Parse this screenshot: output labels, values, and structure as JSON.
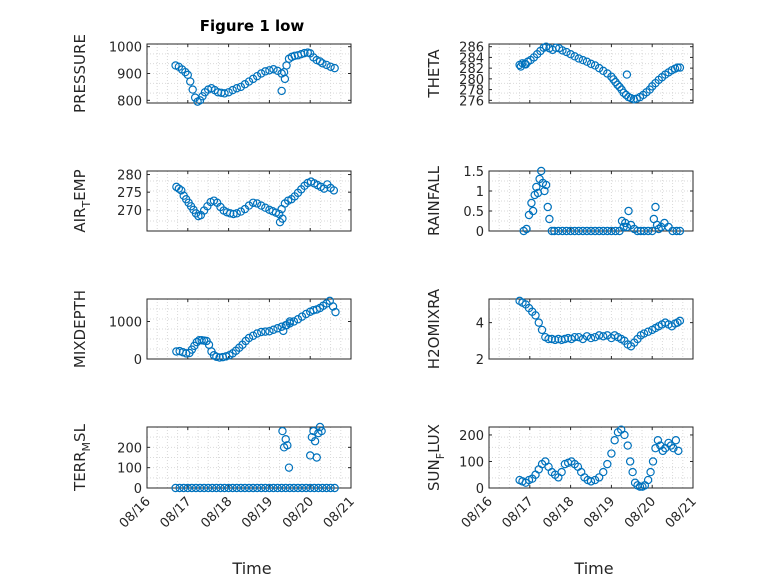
{
  "figure": {
    "title": "Figure 1 low",
    "xlabel": "Time"
  },
  "style": {
    "marker_color": "#0072BD",
    "grid_color": "#d9d9d9",
    "axis_color": "#262626",
    "marker": "circle-open",
    "grid": "dotted"
  },
  "chart_data": [
    {
      "type": "scatter",
      "ylabel": "PRESSURE",
      "title": "Figure 1 low",
      "xlim": [
        0,
        5
      ],
      "ylim": [
        790,
        1010
      ],
      "xticks": [
        "08/16",
        "08/17",
        "08/18",
        "08/19",
        "08/20",
        "08/21"
      ],
      "show_xticklabels": false,
      "yticks": [
        800,
        900,
        1000
      ],
      "x": [
        0.7,
        0.78,
        0.86,
        0.94,
        1.0,
        1.06,
        1.12,
        1.18,
        1.24,
        1.3,
        1.36,
        1.42,
        1.5,
        1.58,
        1.66,
        1.74,
        1.82,
        1.9,
        2.0,
        2.1,
        2.2,
        2.3,
        2.4,
        2.5,
        2.6,
        2.7,
        2.8,
        2.9,
        3.0,
        3.1,
        3.2,
        3.3,
        3.36,
        3.42,
        3.48,
        3.55,
        3.62,
        3.7,
        3.78,
        3.86,
        3.94,
        4.0,
        4.08,
        4.16,
        4.24,
        4.3,
        4.4,
        4.5,
        4.6,
        3.3,
        3.38
      ],
      "y": [
        930,
        925,
        915,
        905,
        895,
        870,
        840,
        810,
        795,
        800,
        815,
        830,
        840,
        845,
        838,
        830,
        828,
        826,
        830,
        838,
        845,
        850,
        860,
        870,
        880,
        890,
        900,
        908,
        912,
        916,
        910,
        900,
        905,
        930,
        955,
        962,
        966,
        968,
        972,
        976,
        978,
        975,
        960,
        950,
        945,
        938,
        932,
        925,
        920,
        835,
        880
      ]
    },
    {
      "type": "scatter",
      "ylabel": "THETA",
      "xlim": [
        0,
        5
      ],
      "ylim": [
        275.5,
        286.5
      ],
      "xticks": [
        "08/16",
        "08/17",
        "08/18",
        "08/19",
        "08/20",
        "08/21"
      ],
      "show_xticklabels": false,
      "yticks": [
        276,
        278,
        280,
        282,
        284,
        286
      ],
      "x": [
        0.75,
        0.82,
        0.88,
        0.95,
        1.02,
        1.1,
        1.18,
        1.26,
        1.34,
        1.4,
        1.48,
        1.56,
        1.64,
        1.72,
        1.8,
        1.9,
        2.0,
        2.1,
        2.2,
        2.3,
        2.4,
        2.5,
        2.6,
        2.7,
        2.8,
        2.9,
        3.0,
        3.05,
        3.1,
        3.15,
        3.2,
        3.25,
        3.3,
        3.36,
        3.42,
        3.48,
        3.55,
        3.62,
        3.7,
        3.78,
        3.86,
        3.94,
        4.0,
        4.08,
        4.16,
        4.24,
        4.32,
        4.4,
        4.48,
        4.56,
        4.62,
        4.68,
        3.38,
        0.78,
        0.9
      ],
      "y": [
        282.6,
        282.9,
        282.8,
        283.2,
        283.5,
        284.0,
        284.6,
        285.2,
        285.8,
        286.0,
        285.7,
        285.4,
        285.8,
        285.7,
        285.3,
        285.0,
        284.6,
        284.2,
        283.8,
        283.5,
        283.2,
        282.8,
        282.5,
        282.0,
        281.5,
        281.0,
        280.4,
        279.9,
        279.4,
        278.9,
        278.5,
        278.0,
        277.4,
        277.0,
        276.6,
        276.4,
        276.2,
        276.3,
        276.6,
        277.0,
        277.5,
        278.0,
        278.6,
        279.2,
        279.8,
        280.3,
        280.8,
        281.2,
        281.6,
        281.9,
        282.1,
        282.1,
        280.8,
        282.3,
        282.7
      ]
    },
    {
      "type": "scatter",
      "ylabel": "AIR_TEMP",
      "ylabel_main": "AIR",
      "ylabel_sub": "T",
      "ylabel_rest": "EMP",
      "xlim": [
        0,
        5
      ],
      "ylim": [
        264,
        281
      ],
      "xticks": [
        "08/16",
        "08/17",
        "08/18",
        "08/19",
        "08/20",
        "08/21"
      ],
      "show_xticklabels": false,
      "yticks": [
        270,
        275,
        280
      ],
      "x": [
        0.72,
        0.78,
        0.84,
        0.9,
        0.96,
        1.02,
        1.08,
        1.14,
        1.2,
        1.26,
        1.32,
        1.4,
        1.48,
        1.56,
        1.64,
        1.72,
        1.8,
        1.88,
        1.96,
        2.04,
        2.12,
        2.2,
        2.3,
        2.4,
        2.5,
        2.6,
        2.7,
        2.8,
        2.9,
        3.0,
        3.08,
        3.16,
        3.24,
        3.3,
        3.38,
        3.46,
        3.54,
        3.62,
        3.7,
        3.78,
        3.86,
        3.94,
        4.02,
        4.1,
        4.18,
        4.26,
        4.34,
        4.42,
        4.5,
        4.58,
        3.26,
        3.32
      ],
      "y": [
        276.5,
        276.0,
        275.5,
        274.0,
        273.0,
        272.0,
        271.0,
        270.0,
        269.0,
        268.2,
        268.5,
        269.8,
        271.0,
        272.2,
        272.6,
        272.0,
        270.8,
        269.8,
        269.3,
        269.0,
        268.8,
        269.0,
        269.5,
        270.2,
        271.2,
        272.0,
        271.8,
        271.2,
        270.6,
        270.0,
        269.6,
        269.2,
        268.8,
        270.2,
        271.8,
        272.6,
        273.0,
        273.8,
        274.8,
        275.8,
        276.8,
        277.6,
        278.0,
        277.5,
        277.0,
        276.5,
        276.0,
        277.2,
        276.2,
        275.5,
        266.5,
        267.5
      ]
    },
    {
      "type": "scatter",
      "ylabel": "RAINFALL",
      "xlim": [
        0,
        5
      ],
      "ylim": [
        0,
        1.5
      ],
      "xticks": [
        "08/16",
        "08/17",
        "08/18",
        "08/19",
        "08/20",
        "08/21"
      ],
      "show_xticklabels": false,
      "yticks": [
        0,
        0.5,
        1,
        1.5
      ],
      "x": [
        0.85,
        0.92,
        0.98,
        1.04,
        1.08,
        1.12,
        1.16,
        1.2,
        1.24,
        1.28,
        1.32,
        1.36,
        1.4,
        1.44,
        1.48,
        1.54,
        1.6,
        1.7,
        1.8,
        1.9,
        2.0,
        2.1,
        2.2,
        2.3,
        2.4,
        2.5,
        2.6,
        2.7,
        2.8,
        2.9,
        3.0,
        3.1,
        3.2,
        3.26,
        3.3,
        3.34,
        3.38,
        3.42,
        3.48,
        3.56,
        3.64,
        3.72,
        3.8,
        3.9,
        4.0,
        4.04,
        4.08,
        4.12,
        4.16,
        4.22,
        4.3,
        4.4,
        4.5,
        4.6,
        4.68
      ],
      "y": [
        0,
        0.05,
        0.4,
        0.7,
        0.5,
        0.9,
        1.1,
        0.95,
        1.3,
        1.5,
        1.2,
        1.0,
        1.15,
        0.6,
        0.3,
        0,
        0,
        0,
        0,
        0,
        0,
        0,
        0,
        0,
        0,
        0,
        0,
        0,
        0,
        0,
        0,
        0,
        0,
        0.25,
        0.1,
        0.2,
        0.1,
        0.5,
        0.15,
        0.05,
        0,
        0,
        0,
        0,
        0,
        0.3,
        0.6,
        0.15,
        0.05,
        0.1,
        0.2,
        0.1,
        0,
        0,
        0
      ]
    },
    {
      "type": "scatter",
      "ylabel": "MIXDEPTH",
      "xlim": [
        0,
        5
      ],
      "ylim": [
        0,
        1600
      ],
      "xticks": [
        "08/16",
        "08/17",
        "08/18",
        "08/19",
        "08/20",
        "08/21"
      ],
      "show_xticklabels": false,
      "yticks": [
        0,
        1000
      ],
      "x": [
        0.72,
        0.8,
        0.88,
        0.96,
        1.04,
        1.1,
        1.16,
        1.22,
        1.28,
        1.34,
        1.4,
        1.46,
        1.52,
        1.58,
        1.64,
        1.7,
        1.78,
        1.86,
        1.94,
        2.02,
        2.1,
        2.18,
        2.26,
        2.34,
        2.42,
        2.5,
        2.6,
        2.7,
        2.8,
        2.9,
        3.0,
        3.1,
        3.2,
        3.3,
        3.4,
        3.5,
        3.6,
        3.7,
        3.8,
        3.9,
        4.0,
        4.08,
        4.16,
        4.24,
        4.32,
        4.4,
        4.48,
        4.56,
        4.62,
        3.34,
        3.42,
        3.5
      ],
      "y": [
        200,
        210,
        180,
        150,
        160,
        250,
        350,
        450,
        500,
        500,
        490,
        480,
        380,
        200,
        100,
        60,
        40,
        50,
        70,
        100,
        150,
        220,
        300,
        380,
        480,
        560,
        620,
        680,
        720,
        730,
        740,
        780,
        820,
        860,
        900,
        950,
        1000,
        1060,
        1130,
        1200,
        1260,
        1300,
        1320,
        1360,
        1420,
        1480,
        1550,
        1400,
        1250,
        750,
        900,
        1000
      ]
    },
    {
      "type": "scatter",
      "ylabel": "H2OMIXRA",
      "xlim": [
        0,
        5
      ],
      "ylim": [
        2,
        5.3
      ],
      "xticks": [
        "08/16",
        "08/17",
        "08/18",
        "08/19",
        "08/20",
        "08/21"
      ],
      "show_xticklabels": false,
      "yticks": [
        2,
        4
      ],
      "x": [
        0.75,
        0.82,
        0.9,
        0.98,
        1.06,
        1.14,
        1.22,
        1.3,
        1.38,
        1.46,
        1.54,
        1.62,
        1.7,
        1.78,
        1.86,
        1.94,
        2.02,
        2.1,
        2.2,
        2.3,
        2.4,
        2.5,
        2.6,
        2.7,
        2.8,
        2.9,
        3.0,
        3.08,
        3.16,
        3.24,
        3.32,
        3.4,
        3.48,
        3.56,
        3.64,
        3.72,
        3.8,
        3.9,
        4.0,
        4.08,
        4.16,
        4.24,
        4.32,
        4.4,
        4.48,
        4.56,
        4.62,
        4.68
      ],
      "y": [
        5.2,
        5.1,
        5.0,
        4.8,
        4.6,
        4.4,
        4.0,
        3.6,
        3.2,
        3.1,
        3.1,
        3.05,
        3.1,
        3.05,
        3.1,
        3.15,
        3.1,
        3.2,
        3.2,
        3.1,
        3.25,
        3.15,
        3.2,
        3.3,
        3.25,
        3.3,
        3.15,
        3.3,
        3.2,
        3.1,
        3.0,
        2.8,
        2.7,
        2.9,
        3.1,
        3.3,
        3.4,
        3.5,
        3.6,
        3.7,
        3.8,
        3.9,
        4.0,
        3.9,
        3.8,
        3.95,
        4.0,
        4.1
      ]
    },
    {
      "type": "scatter",
      "ylabel": "TERR_MSL",
      "ylabel_main": "TERR",
      "ylabel_sub": "M",
      "ylabel_rest": "SL",
      "xlim": [
        0,
        5
      ],
      "ylim": [
        0,
        300
      ],
      "xticks": [
        "08/16",
        "08/17",
        "08/18",
        "08/19",
        "08/20",
        "08/21"
      ],
      "show_xticklabels": true,
      "yticks": [
        0,
        100,
        200
      ],
      "x": [
        0.7,
        0.8,
        0.9,
        1.0,
        1.1,
        1.2,
        1.3,
        1.4,
        1.5,
        1.6,
        1.7,
        1.8,
        1.9,
        2.0,
        2.1,
        2.2,
        2.3,
        2.4,
        2.5,
        2.6,
        2.7,
        2.8,
        2.9,
        3.0,
        3.1,
        3.2,
        3.3,
        3.4,
        3.5,
        3.6,
        3.7,
        3.8,
        3.9,
        4.0,
        4.1,
        4.2,
        4.3,
        4.4,
        4.5,
        4.6,
        3.32,
        3.36,
        3.4,
        3.44,
        3.48,
        4.0,
        4.04,
        4.08,
        4.12,
        4.16,
        4.2,
        4.24,
        4.28
      ],
      "y": [
        0,
        0,
        0,
        0,
        0,
        0,
        0,
        0,
        0,
        0,
        0,
        0,
        0,
        0,
        0,
        0,
        0,
        0,
        0,
        0,
        0,
        0,
        0,
        0,
        0,
        0,
        0,
        0,
        0,
        0,
        0,
        0,
        0,
        0,
        0,
        0,
        0,
        0,
        0,
        0,
        280,
        200,
        240,
        210,
        100,
        160,
        250,
        280,
        230,
        150,
        270,
        300,
        280
      ]
    },
    {
      "type": "scatter",
      "ylabel": "SUN_FLUX",
      "ylabel_main": "SUN",
      "ylabel_sub": "F",
      "ylabel_rest": "LUX",
      "xlim": [
        0,
        5
      ],
      "ylim": [
        0,
        230
      ],
      "xticks": [
        "08/16",
        "08/17",
        "08/18",
        "08/19",
        "08/20",
        "08/21"
      ],
      "show_xticklabels": true,
      "yticks": [
        0,
        100,
        200
      ],
      "x": [
        0.75,
        0.82,
        0.9,
        0.98,
        1.06,
        1.14,
        1.22,
        1.3,
        1.38,
        1.46,
        1.54,
        1.62,
        1.7,
        1.78,
        1.86,
        1.94,
        2.02,
        2.1,
        2.18,
        2.26,
        2.34,
        2.42,
        2.5,
        2.6,
        2.7,
        2.8,
        2.9,
        3.0,
        3.08,
        3.16,
        3.24,
        3.32,
        3.4,
        3.46,
        3.52,
        3.58,
        3.64,
        3.7,
        3.76,
        3.82,
        3.9,
        3.96,
        4.02,
        4.08,
        4.14,
        4.2,
        4.26,
        4.32,
        4.4,
        4.46,
        4.52,
        4.58,
        4.64
      ],
      "y": [
        30,
        25,
        20,
        30,
        35,
        50,
        70,
        90,
        100,
        80,
        60,
        50,
        40,
        60,
        90,
        95,
        100,
        90,
        80,
        60,
        40,
        30,
        25,
        30,
        40,
        60,
        90,
        130,
        180,
        210,
        220,
        200,
        160,
        100,
        60,
        20,
        10,
        5,
        5,
        10,
        30,
        60,
        100,
        150,
        180,
        160,
        140,
        150,
        170,
        160,
        150,
        180,
        140
      ]
    }
  ]
}
